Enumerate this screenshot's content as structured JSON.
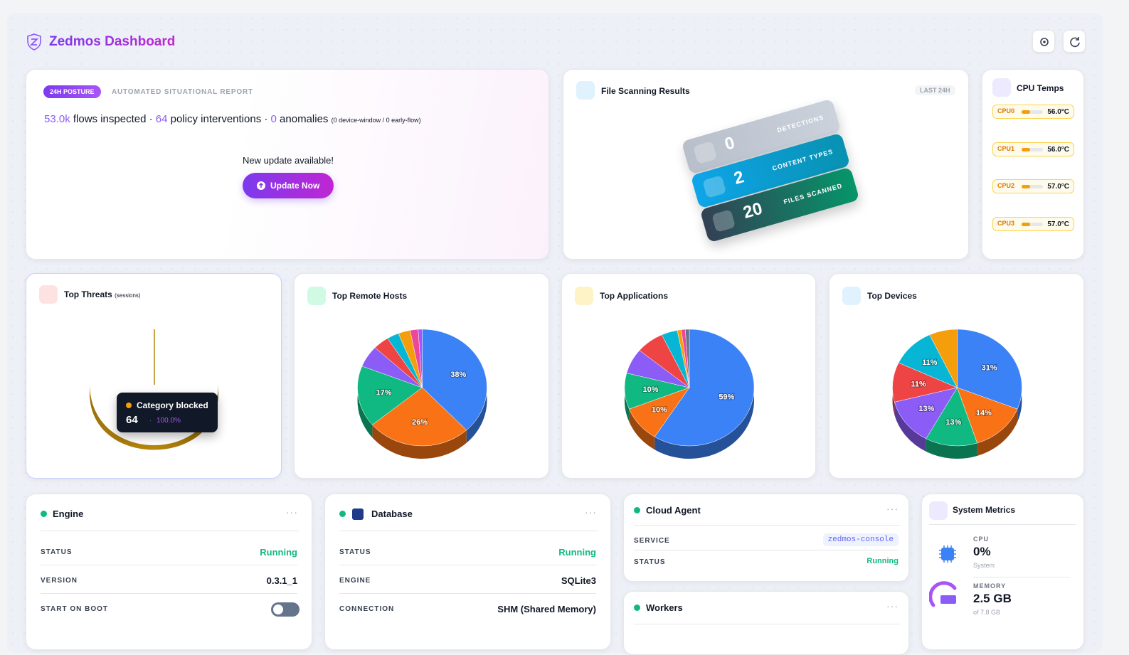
{
  "header": {
    "title": "Zedmos Dashboard"
  },
  "posture": {
    "badge": "24H POSTURE",
    "caption": "AUTOMATED SITUATIONAL REPORT",
    "flows": "53.0k",
    "flows_text": "flows inspected ·",
    "interventions": "64",
    "interventions_text": "policy interventions ·",
    "anomalies": "0",
    "anomalies_text": "anomalies",
    "anomalies_note": "(0 device-window / 0 early-flow)",
    "update_text": "New update available!",
    "update_button": "Update Now"
  },
  "file_scanning": {
    "title": "File Scanning Results",
    "range": "LAST 24H",
    "cards": [
      {
        "count": "0",
        "label": "DETECTIONS"
      },
      {
        "count": "2",
        "label": "CONTENT TYPES"
      },
      {
        "count": "20",
        "label": "FILES SCANNED"
      }
    ]
  },
  "cpu_temps": {
    "title": "CPU Temps",
    "sensors": [
      {
        "name": "CPU0",
        "reading": "56.0°C"
      },
      {
        "name": "CPU1",
        "reading": "56.0°C"
      },
      {
        "name": "CPU2",
        "reading": "57.0°C"
      },
      {
        "name": "CPU3",
        "reading": "57.0°C"
      }
    ]
  },
  "top_threats": {
    "title": "Top Threats",
    "subtitle": "(sessions)",
    "type": "pie",
    "categories": [
      "Category blocked"
    ],
    "values": [
      64
    ],
    "shares": [
      "100.0%"
    ],
    "colors": [
      "#b8860b"
    ]
  },
  "top_remote_hosts": {
    "title": "Top Remote Hosts",
    "type": "pie",
    "values": [
      38,
      26,
      17,
      6,
      4,
      3,
      3,
      2,
      1
    ],
    "value_labels": [
      "38%",
      "26%",
      "17%",
      null,
      null,
      null,
      null,
      null,
      null
    ],
    "colors": [
      "#3b82f6",
      "#f97316",
      "#10b981",
      "#8b5cf6",
      "#ef4444",
      "#06b6d4",
      "#f59e0b",
      "#ec4899",
      "#a855f7"
    ]
  },
  "top_applications": {
    "title": "Top Applications",
    "type": "pie",
    "values": [
      59,
      10,
      10,
      7,
      7,
      4,
      1,
      1,
      1
    ],
    "value_labels": [
      "59%",
      "10%",
      "10%",
      null,
      null,
      null,
      null,
      null,
      null
    ],
    "colors": [
      "#3b82f6",
      "#f97316",
      "#10b981",
      "#8b5cf6",
      "#ef4444",
      "#06b6d4",
      "#f59e0b",
      "#ec4899",
      "#64748b"
    ]
  },
  "top_devices": {
    "title": "Top Devices",
    "type": "pie",
    "values": [
      31,
      14,
      13,
      13,
      11,
      11,
      7
    ],
    "value_labels": [
      "31%",
      "14%",
      "13%",
      "13%",
      "11%",
      "11%",
      null
    ],
    "colors": [
      "#3b82f6",
      "#f97316",
      "#10b981",
      "#8b5cf6",
      "#ef4444",
      "#06b6d4",
      "#f59e0b"
    ]
  },
  "engine": {
    "title": "Engine",
    "rows": [
      {
        "label": "STATUS",
        "value": "Running"
      },
      {
        "label": "VERSION",
        "value": "0.3.1_1"
      },
      {
        "label": "START ON BOOT"
      }
    ]
  },
  "database": {
    "title": "Database",
    "rows": [
      {
        "label": "STATUS",
        "value": "Running"
      },
      {
        "label": "ENGINE",
        "value": "SQLite3"
      },
      {
        "label": "CONNECTION",
        "value": "SHM (Shared Memory)"
      }
    ]
  },
  "cloud_agent": {
    "title": "Cloud Agent",
    "rows": [
      {
        "label": "SERVICE",
        "value": "zedmos-console"
      },
      {
        "label": "STATUS",
        "value": "Running"
      }
    ]
  },
  "workers": {
    "title": "Workers"
  },
  "system_metrics": {
    "title": "System Metrics",
    "metrics": [
      {
        "label": "CPU",
        "value": "0%",
        "note": "System"
      },
      {
        "label": "MEMORY",
        "value": "2.5 GB",
        "note": "of 7.8 GB"
      }
    ]
  }
}
